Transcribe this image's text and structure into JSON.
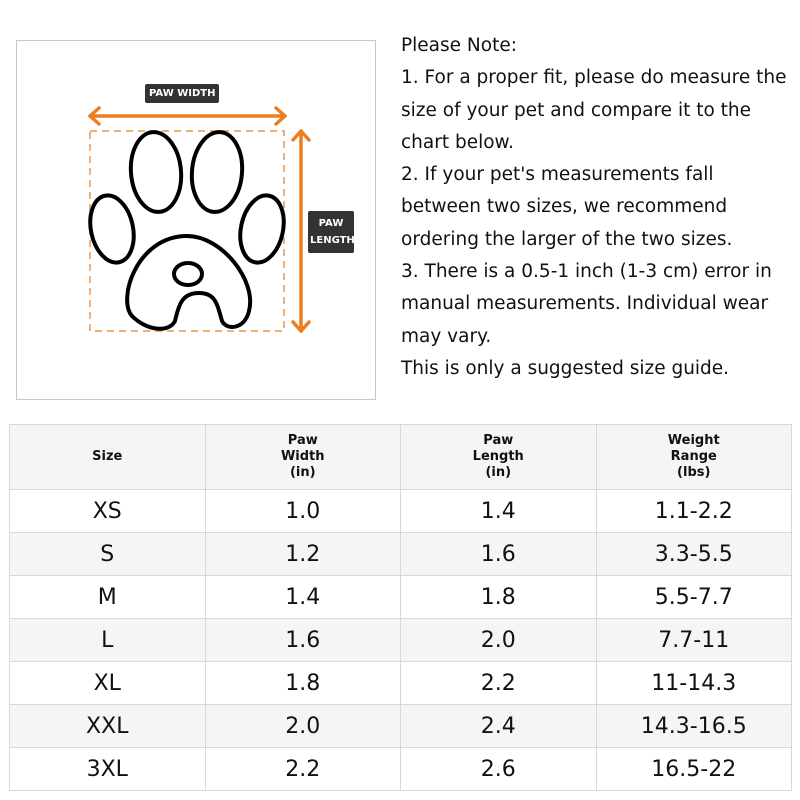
{
  "diagram": {
    "width_label": "PAW WIDTH",
    "length_label_line1": "PAW",
    "length_label_line2": "LENGTH",
    "accent_color": "#ee7d1f",
    "paw_icon": "paw-print-outline"
  },
  "notes": [
    "Please Note:",
    "1. For a proper fit, please do measure the size of your pet and compare it to the chart below.",
    "2. If your pet's measurements fall between two sizes, we recommend ordering the larger of the two sizes.",
    "3. There is a 0.5-1 inch (1-3 cm) error in manual measurements. Individual wear may vary.",
    "This is only a suggested size guide."
  ],
  "table": {
    "headers": [
      {
        "l1": "Size",
        "l2": "",
        "l3": ""
      },
      {
        "l1": "Paw",
        "l2": "Width",
        "l3": "(in)"
      },
      {
        "l1": "Paw",
        "l2": "Length",
        "l3": "(in)"
      },
      {
        "l1": "Weight",
        "l2": "Range",
        "l3": "(lbs)"
      }
    ],
    "rows": [
      [
        "XS",
        "1.0",
        "1.4",
        "1.1-2.2"
      ],
      [
        "S",
        "1.2",
        "1.6",
        "3.3-5.5"
      ],
      [
        "M",
        "1.4",
        "1.8",
        "5.5-7.7"
      ],
      [
        "L",
        "1.6",
        "2.0",
        "7.7-11"
      ],
      [
        "XL",
        "1.8",
        "2.2",
        "11-14.3"
      ],
      [
        "XXL",
        "2.0",
        "2.4",
        "14.3-16.5"
      ],
      [
        "3XL",
        "2.2",
        "2.6",
        "16.5-22"
      ]
    ]
  }
}
